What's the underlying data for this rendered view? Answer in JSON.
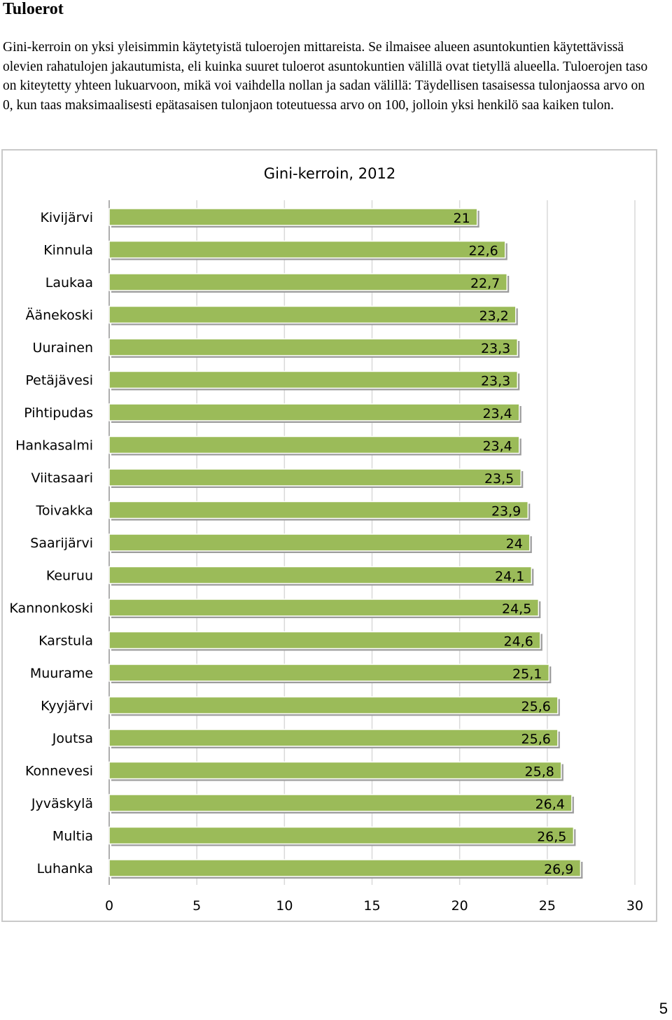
{
  "document": {
    "heading": "Tuloerot",
    "intro": "Gini-kerroin on yksi yleisimmin käytetyistä tuloerojen mittareista. Se ilmaisee alueen asuntokuntien käytettävissä olevien rahatulojen jakautumista, eli kuinka suuret tuloerot asuntokuntien välillä ovat tietyllä alueella. Tuloerojen taso on kiteytetty yhteen lukuarvoon, mikä voi vaihdella nollan ja sadan välillä: Täydellisen tasaisessa tulonjaossa arvo on 0, kun taas maksimaalisesti epätasaisen tulonjaon toteutuessa arvo on 100, jolloin yksi henkilö saa kaiken tulon.",
    "page_number": "5"
  },
  "chart_data": {
    "type": "bar",
    "orientation": "horizontal",
    "title": "Gini-kerroin, 2012",
    "xlabel": "",
    "ylabel": "",
    "xlim": [
      0,
      30
    ],
    "x_ticks": [
      "0",
      "5",
      "10",
      "15",
      "20",
      "25",
      "30"
    ],
    "grid": "vertical",
    "bar_color": "#9bbb59",
    "categories": [
      "Kivijärvi",
      "Kinnula",
      "Laukaa",
      "Äänekoski",
      "Uurainen",
      "Petäjävesi",
      "Pihtipudas",
      "Hankasalmi",
      "Viitasaari",
      "Toivakka",
      "Saarijärvi",
      "Keuruu",
      "Kannonkoski",
      "Karstula",
      "Muurame",
      "Kyyjärvi",
      "Joutsa",
      "Konnevesi",
      "Jyväskylä",
      "Multia",
      "Luhanka"
    ],
    "values": [
      21,
      22.6,
      22.7,
      23.2,
      23.3,
      23.3,
      23.4,
      23.4,
      23.5,
      23.9,
      24,
      24.1,
      24.5,
      24.6,
      25.1,
      25.6,
      25.6,
      25.8,
      26.4,
      26.5,
      26.9
    ],
    "value_labels": [
      "21",
      "22,6",
      "22,7",
      "23,2",
      "23,3",
      "23,3",
      "23,4",
      "23,4",
      "23,5",
      "23,9",
      "24",
      "24,1",
      "24,5",
      "24,6",
      "25,1",
      "25,6",
      "25,6",
      "25,8",
      "26,4",
      "26,5",
      "26,9"
    ]
  }
}
